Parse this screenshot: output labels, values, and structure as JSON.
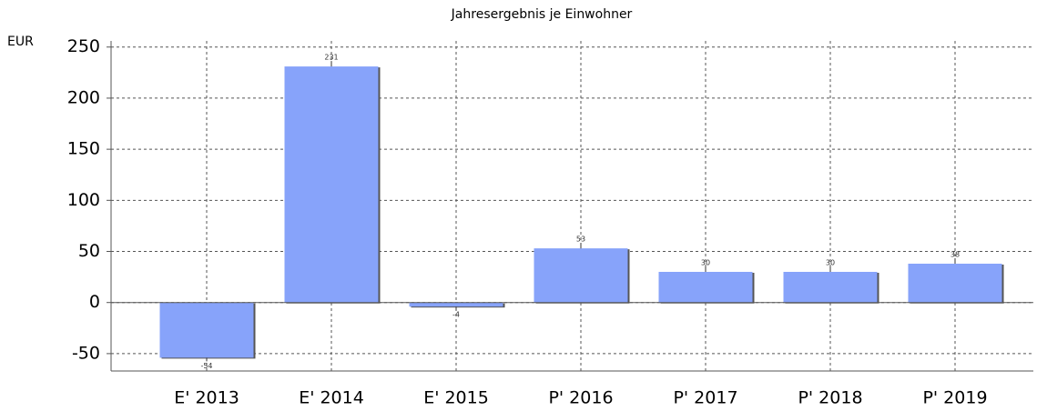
{
  "chart_data": {
    "type": "bar",
    "title": "Jahresergebnis je Einwohner",
    "y_label": "EUR",
    "categories": [
      "E' 2013",
      "E' 2014",
      "E' 2015",
      "P' 2016",
      "P' 2017",
      "P' 2018",
      "P' 2019"
    ],
    "values": [
      -54,
      231,
      -4,
      53,
      30,
      30,
      38
    ],
    "color": "#87a3fa",
    "ylim": [
      -67,
      256
    ],
    "yticks": [
      -50,
      0,
      50,
      100,
      150,
      200,
      250
    ],
    "grid": true
  }
}
